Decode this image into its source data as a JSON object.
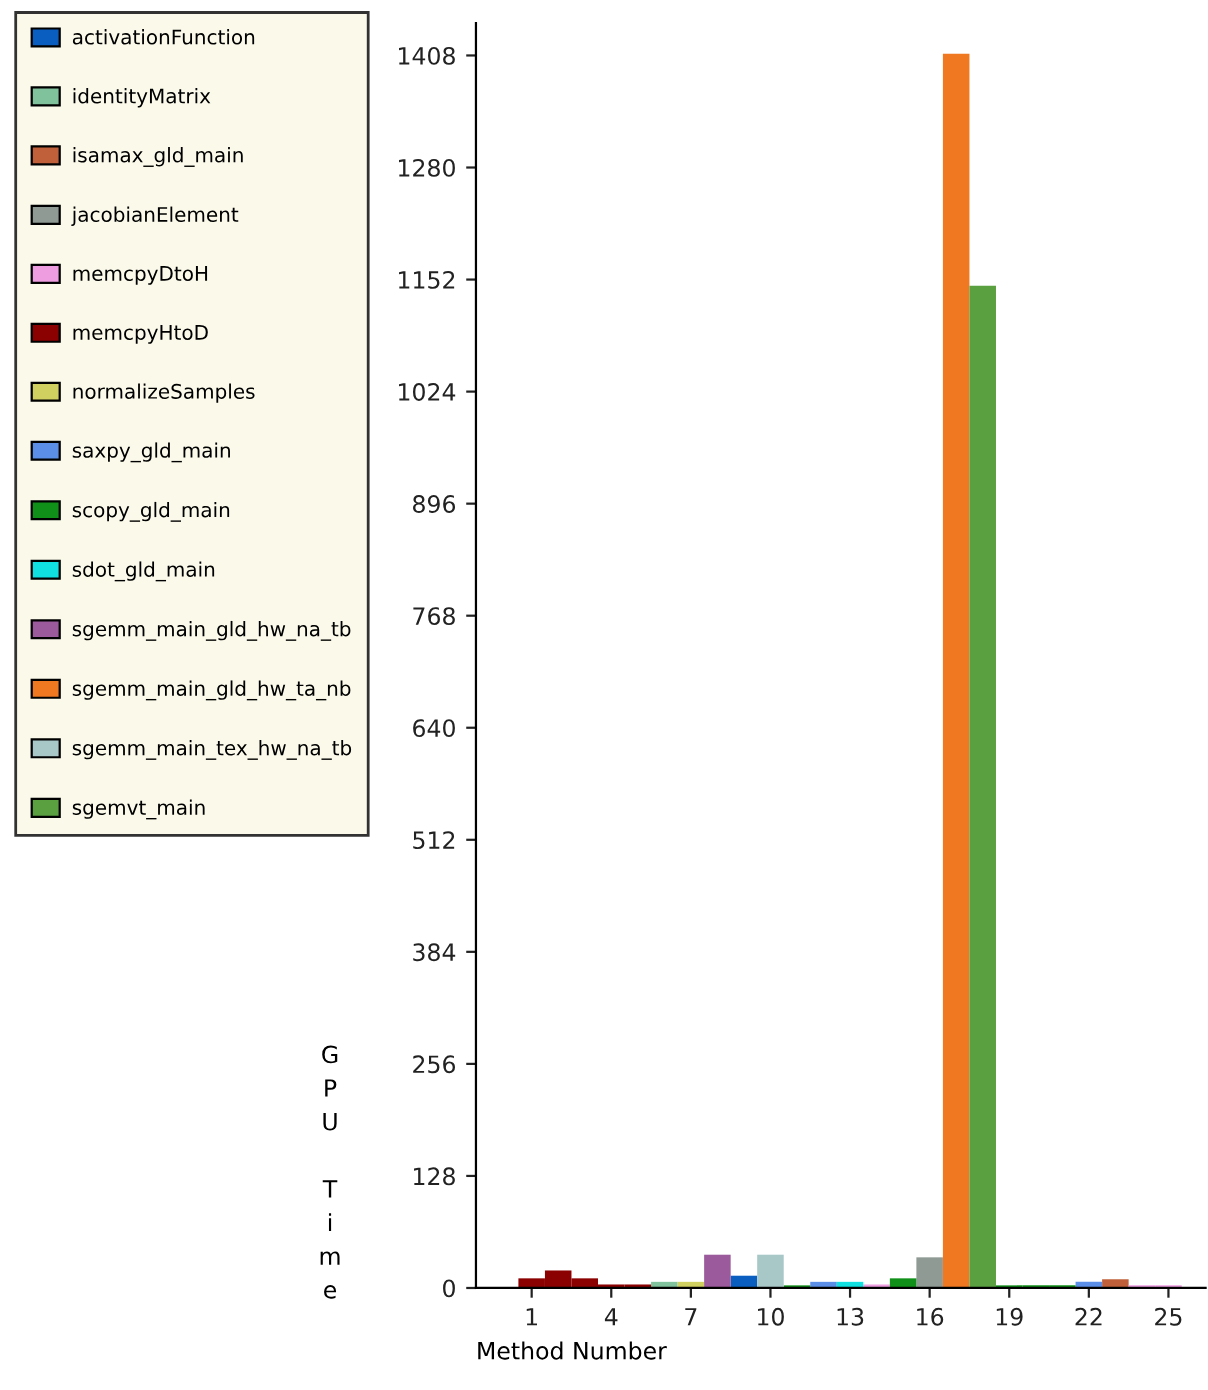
{
  "chart_data": {
    "type": "bar",
    "xlabel": "Method Number",
    "ylabel": "GPU Time",
    "xlim": [
      -1.1,
      26.4
    ],
    "ylim": [
      0,
      1445
    ],
    "xticks": [
      1,
      4,
      7,
      10,
      13,
      16,
      19,
      22,
      25
    ],
    "yticks": [
      0,
      128,
      256,
      384,
      512,
      640,
      768,
      896,
      1024,
      1152,
      1280,
      1408
    ],
    "legend": "top left",
    "grid": false,
    "series": [
      {
        "name": "activationFunction",
        "color": "#0a5ec0",
        "x": [
          9
        ],
        "values": [
          14
        ]
      },
      {
        "name": "identityMatrix",
        "color": "#7fc29b",
        "x": [
          6
        ],
        "values": [
          7
        ]
      },
      {
        "name": "isamax_gld_main",
        "color": "#c0603a",
        "x": [
          23
        ],
        "values": [
          10
        ]
      },
      {
        "name": "jacobianElement",
        "color": "#8f9a94",
        "x": [
          16
        ],
        "values": [
          35
        ]
      },
      {
        "name": "memcpyDtoH",
        "color": "#ee9ee0",
        "x": [
          14,
          24,
          25
        ],
        "values": [
          4,
          3,
          3
        ]
      },
      {
        "name": "memcpyHtoD",
        "color": "#8b0000",
        "x": [
          1,
          2,
          3,
          4,
          5
        ],
        "values": [
          11,
          20,
          11,
          4,
          4
        ]
      },
      {
        "name": "normalizeSamples",
        "color": "#d0d060",
        "x": [
          7
        ],
        "values": [
          7
        ]
      },
      {
        "name": "saxpy_gld_main",
        "color": "#5b8ee6",
        "x": [
          12,
          22
        ],
        "values": [
          7,
          7
        ]
      },
      {
        "name": "scopy_gld_main",
        "color": "#109018",
        "x": [
          11,
          15,
          19,
          20,
          21
        ],
        "values": [
          3,
          11,
          3,
          3,
          3
        ]
      },
      {
        "name": "sdot_gld_main",
        "color": "#10e0e0",
        "x": [
          13
        ],
        "values": [
          7
        ]
      },
      {
        "name": "sgemm_main_gld_hw_na_tb",
        "color": "#9b5a9b",
        "x": [
          8
        ],
        "values": [
          38
        ]
      },
      {
        "name": "sgemm_main_gld_hw_ta_nb",
        "color": "#f07820",
        "x": [
          17
        ],
        "values": [
          1410
        ]
      },
      {
        "name": "sgemm_main_tex_hw_na_tb",
        "color": "#a8c8c8",
        "x": [
          10
        ],
        "values": [
          38
        ]
      },
      {
        "name": "sgemvt_main",
        "color": "#5aa040",
        "x": [
          18
        ],
        "values": [
          1145
        ]
      }
    ]
  }
}
